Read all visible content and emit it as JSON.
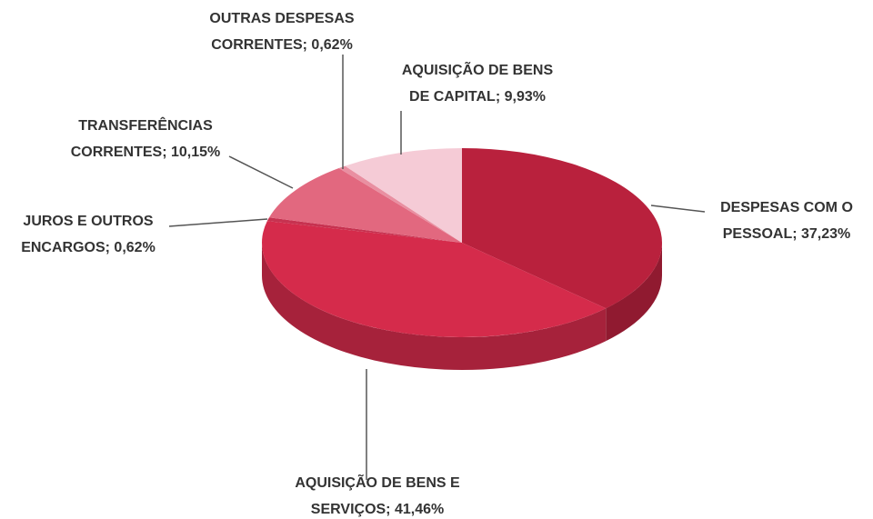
{
  "chart_data": {
    "type": "pie",
    "values": [
      37.23,
      41.46,
      0.62,
      10.15,
      0.62,
      9.93
    ],
    "value_labels": [
      "DESPESAS COM O PESSOAL; 37,23%",
      "AQUISIÇÃO DE BENS E SERVIÇOS; 41,46%",
      "JUROS E OUTROS ENCARGOS; 0,62%",
      "TRANSFERÊNCIAS CORRENTES; 10,15%",
      "OUTRAS DESPESAS CORRENTES; 0,62%",
      "AQUISIÇÃO DE BENS DE CAPITAL; 9,93%"
    ],
    "colors": [
      "#b9213d",
      "#d52b4b",
      "#c73250",
      "#e2687f",
      "#e98fa1",
      "#f5cbd6"
    ]
  }
}
